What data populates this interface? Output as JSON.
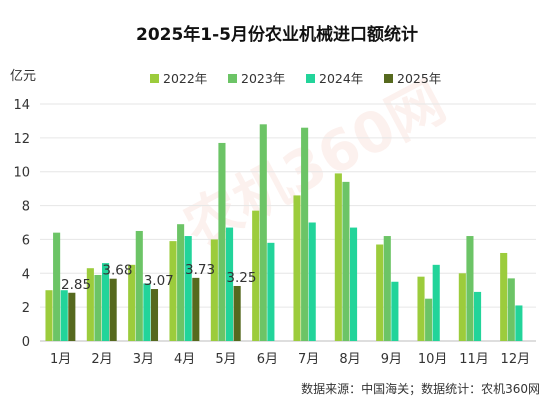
{
  "chart_data": {
    "type": "bar",
    "title": "2025年1-5月份农业机械进口额统计",
    "ylabel": "亿元",
    "xlabel": "",
    "ylim": [
      0,
      14
    ],
    "yticks": [
      0,
      2,
      4,
      6,
      8,
      10,
      12,
      14
    ],
    "categories": [
      "1月",
      "2月",
      "3月",
      "4月",
      "5月",
      "6月",
      "7月",
      "8月",
      "9月",
      "10月",
      "11月",
      "12月"
    ],
    "series": [
      {
        "name": "2022年",
        "color": "#9ccc3c",
        "values": [
          3.0,
          4.3,
          4.5,
          5.9,
          6.0,
          7.7,
          8.6,
          9.9,
          5.7,
          3.8,
          4.0,
          5.2
        ]
      },
      {
        "name": "2023年",
        "color": "#6cc466",
        "values": [
          6.4,
          3.9,
          6.5,
          6.9,
          11.7,
          12.8,
          12.6,
          9.4,
          6.2,
          2.5,
          6.2,
          3.7
        ]
      },
      {
        "name": "2024年",
        "color": "#22d49a",
        "values": [
          3.0,
          4.6,
          3.4,
          6.2,
          6.7,
          5.8,
          7.0,
          6.7,
          3.5,
          4.5,
          2.9,
          2.1
        ]
      },
      {
        "name": "2025年",
        "color": "#56691e",
        "values": [
          2.85,
          3.68,
          3.07,
          3.73,
          3.25,
          null,
          null,
          null,
          null,
          null,
          null,
          null
        ]
      }
    ],
    "data_labels": {
      "series": "2025年",
      "values": [
        "2.85",
        "3.68",
        "3.07",
        "3.73",
        "3.25"
      ]
    },
    "grid": "horizontal",
    "legend_position": "top"
  },
  "source_text": "数据来源：中国海关；数据统计：农机360网",
  "watermark_text": "农机360网"
}
